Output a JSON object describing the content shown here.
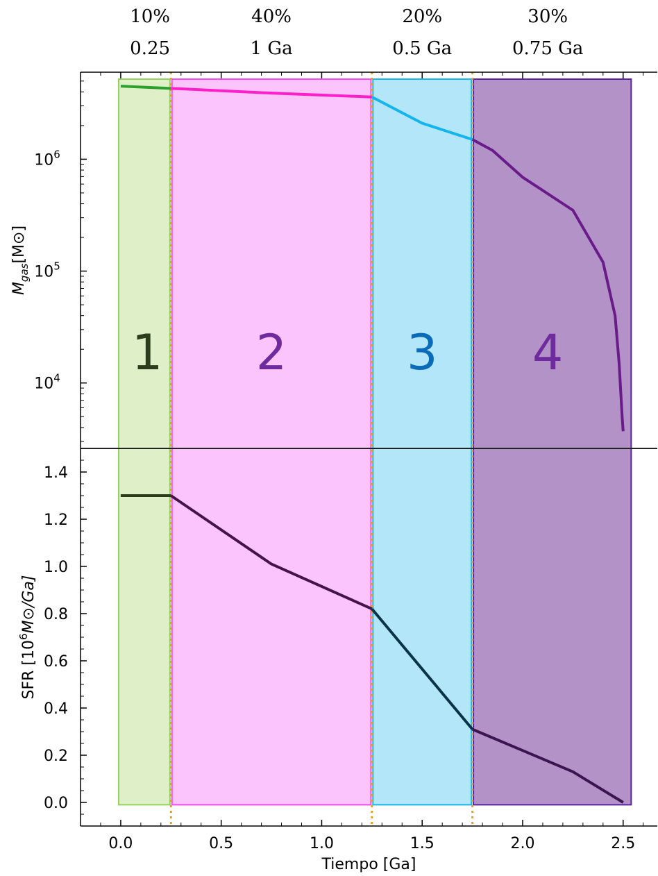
{
  "chart_data": [
    {
      "type": "line",
      "panel": "top",
      "yscale": "log",
      "ylabel": "M_gas[M⊙]",
      "xlim": [
        -0.2,
        2.67
      ],
      "ylim": [
        2600,
        6000000
      ],
      "y_ticks": [
        {
          "value": 10000,
          "label": "10",
          "exp": "4"
        },
        {
          "value": 100000,
          "label": "10",
          "exp": "5"
        },
        {
          "value": 1000000,
          "label": "10",
          "exp": "6"
        }
      ],
      "series": [
        {
          "color": "#2ca02c",
          "points": [
            [
              0,
              4500000
            ],
            [
              0.25,
              4300000
            ]
          ]
        },
        {
          "color": "#ff1fc8",
          "points": [
            [
              0.25,
              4300000
            ],
            [
              0.75,
              3900000
            ],
            [
              1.25,
              3600000
            ]
          ]
        },
        {
          "color": "#14b4ec",
          "points": [
            [
              1.25,
              3600000
            ],
            [
              1.5,
              2100000
            ],
            [
              1.75,
              1500000
            ]
          ]
        },
        {
          "color": "#6a1b8a",
          "points": [
            [
              1.75,
              1500000
            ],
            [
              1.85,
              1200000
            ],
            [
              2.0,
              690000
            ],
            [
              2.25,
              350000
            ],
            [
              2.4,
              120000
            ],
            [
              2.46,
              40000
            ],
            [
              2.48,
              15000
            ],
            [
              2.495,
              5000
            ],
            [
              2.5,
              3700
            ]
          ]
        }
      ]
    },
    {
      "type": "line",
      "panel": "bottom",
      "ylabel": "SFR [10^6M⊙/Ga]",
      "xlabel": "Tiempo [Ga]",
      "xlim": [
        -0.2,
        2.67
      ],
      "ylim": [
        -0.1,
        1.5
      ],
      "y_ticks": [
        "0.0",
        "0.2",
        "0.4",
        "0.6",
        "0.8",
        "1.0",
        "1.2",
        "1.4"
      ],
      "x_ticks": [
        "0.0",
        "0.5",
        "1.0",
        "1.5",
        "2.0",
        "2.5"
      ],
      "series": [
        {
          "color": "#2b3d1c",
          "points": [
            [
              0,
              1.3
            ],
            [
              0.25,
              1.3
            ]
          ]
        },
        {
          "color": "#44134a",
          "points": [
            [
              0.25,
              1.3
            ],
            [
              0.75,
              1.01
            ],
            [
              1.25,
              0.82
            ]
          ]
        },
        {
          "color": "#0b3346",
          "points": [
            [
              1.25,
              0.82
            ],
            [
              1.75,
              0.31
            ]
          ]
        },
        {
          "color": "#3a1650",
          "points": [
            [
              1.75,
              0.31
            ],
            [
              2.0,
              0.22
            ],
            [
              2.25,
              0.13
            ],
            [
              2.5,
              0.0
            ]
          ]
        }
      ]
    }
  ],
  "phases": [
    {
      "number": "1",
      "percent": "10%",
      "duration": "0.25",
      "start": 0.0,
      "end": 0.25,
      "fill": "#dff0c8",
      "stroke": "#95cf5e",
      "text_color": "#2b3d1c"
    },
    {
      "number": "2",
      "percent": "40%",
      "duration": "1 Ga",
      "start": 0.25,
      "end": 1.25,
      "fill": "#fcc4fc",
      "stroke": "#f04cf0",
      "text_color": "#6f2b9e"
    },
    {
      "number": "3",
      "percent": "20%",
      "duration": "0.5 Ga",
      "start": 1.25,
      "end": 1.75,
      "fill": "#b3e6f8",
      "stroke": "#16b5ea",
      "text_color": "#0a6bb8"
    },
    {
      "number": "4",
      "percent": "30%",
      "duration": "0.75 Ga",
      "start": 1.75,
      "end": 2.5,
      "fill": "#b392c8",
      "stroke": "#5a22a0",
      "text_color": "#6f2b9e"
    }
  ],
  "phase_boundaries": [
    0.25,
    1.25,
    1.75
  ],
  "boundary_color": "#e8a020"
}
